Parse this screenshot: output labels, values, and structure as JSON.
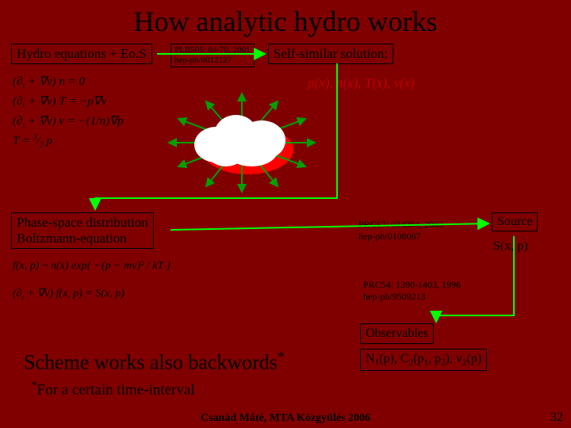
{
  "title": "How analytic hydro works",
  "boxes": {
    "hydro": "Hydro equations + Eo.S",
    "selfsim": "Self-similar solution:",
    "phase_l1": "Phase-space distribution",
    "phase_l2": "Boltzmann-equation",
    "ref_plb_l1": "PLB505: 64-70, 2001",
    "ref_plb_l2": "hep-ph/0012127",
    "ref_prc67_l1": "PRC67: 034904, 2003",
    "ref_prc67_l2": "hep-ph/0108067",
    "ref_prc54_l1": "PRC54: 1390-1403, 1996",
    "ref_prc54_l2": "hep-ph/9509213",
    "source": "Source",
    "sxp": "S(x, p)",
    "observables": "Observables"
  },
  "eqs": {
    "hydro1": "(∂<sub>t</sub> + ∇v) n = 0",
    "hydro2": "(∂<sub>t</sub> + ∇v) T = −p∇v",
    "hydro3": "(∂<sub>t</sub> + ∇v) v = −(1/n)∇p",
    "hydro4": "T = <sup>3</sup>⁄<sub>2</sub> p",
    "selfsim_funcs": "p(x), n(x), T(x), v(x)",
    "boltz1": "f(x, p) ~ n(x) exp{ −(p − mv)² / kT }",
    "boltz2": "(∂<sub>t</sub> + ∇v) f(x, p) = S(x, p)"
  },
  "scheme_base": "Scheme works also backwords",
  "scheme_sup": "*",
  "footnote_sup": "*",
  "footnote_base": "For a certain time-interval",
  "obs_formula_html": "N<sub>1</sub>(p), C<sub>2</sub>(p<sub>1</sub>, p<sub>2</sub>), v<sub>2</sub>(p)",
  "footer": "Csanád Máté, MTA Közgyülés 2006",
  "page": "32",
  "connectors": {
    "stroke": "#00ff00",
    "width": 2
  }
}
